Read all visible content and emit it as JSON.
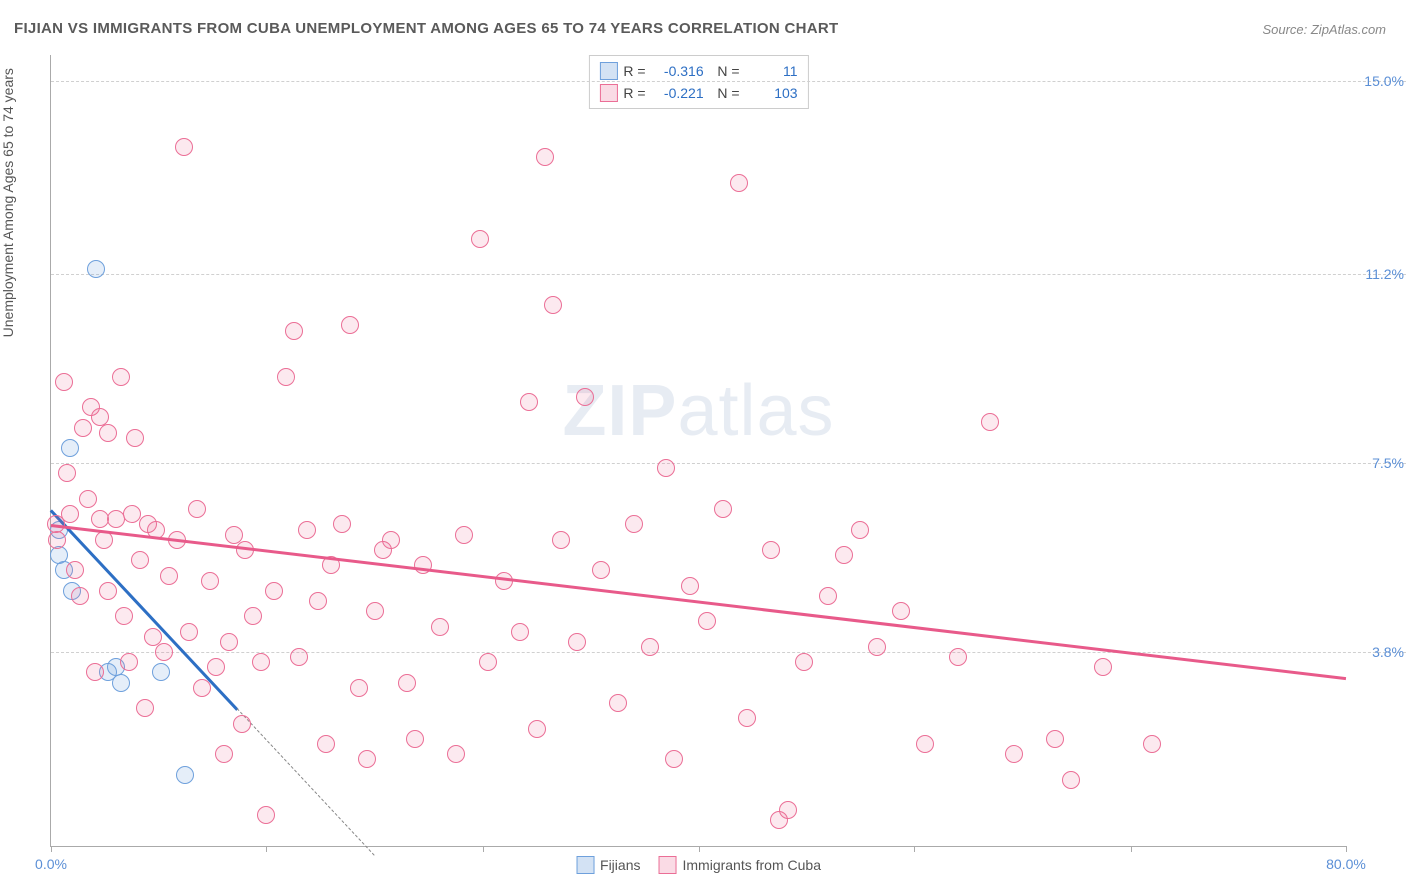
{
  "title": "FIJIAN VS IMMIGRANTS FROM CUBA UNEMPLOYMENT AMONG AGES 65 TO 74 YEARS CORRELATION CHART",
  "source_label": "Source: ZipAtlas.com",
  "ylabel": "Unemployment Among Ages 65 to 74 years",
  "watermark_bold": "ZIP",
  "watermark_light": "atlas",
  "chart": {
    "type": "scatter",
    "xlim": [
      0,
      80
    ],
    "ylim": [
      0,
      15.5
    ],
    "xtick_positions": [
      0,
      13.3,
      26.7,
      40,
      53.3,
      66.7,
      80
    ],
    "xtick_labels": {
      "0": "0.0%",
      "80": "80.0%"
    },
    "ytick_positions": [
      3.8,
      7.5,
      11.2,
      15.0
    ],
    "ytick_labels": [
      "3.8%",
      "7.5%",
      "11.2%",
      "15.0%"
    ],
    "grid_color": "#d0d0d0",
    "background_color": "#ffffff",
    "axis_color": "#aaaaaa",
    "label_color": "#5b8fd6",
    "series": [
      {
        "name": "Fijians",
        "color_fill": "rgba(110,160,220,0.18)",
        "color_stroke": "#6ea0dc",
        "R": "-0.316",
        "N": "11",
        "trend": {
          "x1": 0,
          "y1": 6.6,
          "x2": 11.5,
          "y2": 2.7,
          "color": "#2d6fc4",
          "dash_extend_x": 20
        },
        "points": [
          [
            0.5,
            6.2
          ],
          [
            0.5,
            5.7
          ],
          [
            0.8,
            5.4
          ],
          [
            1.2,
            7.8
          ],
          [
            1.3,
            5.0
          ],
          [
            2.8,
            11.3
          ],
          [
            3.5,
            3.4
          ],
          [
            4.3,
            3.2
          ],
          [
            4.0,
            3.5
          ],
          [
            6.8,
            3.4
          ],
          [
            8.3,
            1.4
          ]
        ]
      },
      {
        "name": "Immigrants from Cuba",
        "color_fill": "rgba(235,110,150,0.15)",
        "color_stroke": "#eb6e96",
        "R": "-0.221",
        "N": "103",
        "trend": {
          "x1": 0,
          "y1": 6.3,
          "x2": 80,
          "y2": 3.3,
          "color": "#e85a8a"
        },
        "points": [
          [
            0.3,
            6.3
          ],
          [
            0.4,
            6.0
          ],
          [
            0.8,
            9.1
          ],
          [
            1.0,
            7.3
          ],
          [
            1.2,
            6.5
          ],
          [
            1.5,
            5.4
          ],
          [
            1.8,
            4.9
          ],
          [
            2.0,
            8.2
          ],
          [
            2.3,
            6.8
          ],
          [
            2.5,
            8.6
          ],
          [
            2.7,
            3.4
          ],
          [
            3.0,
            6.4
          ],
          [
            3.0,
            8.4
          ],
          [
            3.3,
            6.0
          ],
          [
            3.5,
            5.0
          ],
          [
            3.5,
            8.1
          ],
          [
            4.0,
            6.4
          ],
          [
            4.3,
            9.2
          ],
          [
            4.5,
            4.5
          ],
          [
            4.8,
            3.6
          ],
          [
            5.0,
            6.5
          ],
          [
            5.2,
            8.0
          ],
          [
            5.5,
            5.6
          ],
          [
            5.8,
            2.7
          ],
          [
            6.0,
            6.3
          ],
          [
            6.3,
            4.1
          ],
          [
            6.5,
            6.2
          ],
          [
            7.0,
            3.8
          ],
          [
            7.3,
            5.3
          ],
          [
            7.8,
            6.0
          ],
          [
            8.2,
            13.7
          ],
          [
            8.5,
            4.2
          ],
          [
            9.0,
            6.6
          ],
          [
            9.3,
            3.1
          ],
          [
            9.8,
            5.2
          ],
          [
            10.2,
            3.5
          ],
          [
            10.7,
            1.8
          ],
          [
            11.0,
            4.0
          ],
          [
            11.3,
            6.1
          ],
          [
            11.8,
            2.4
          ],
          [
            12.0,
            5.8
          ],
          [
            12.5,
            4.5
          ],
          [
            13.0,
            3.6
          ],
          [
            13.3,
            0.6
          ],
          [
            13.8,
            5.0
          ],
          [
            14.5,
            9.2
          ],
          [
            15.0,
            10.1
          ],
          [
            15.3,
            3.7
          ],
          [
            15.8,
            6.2
          ],
          [
            16.5,
            4.8
          ],
          [
            17.0,
            2.0
          ],
          [
            17.3,
            5.5
          ],
          [
            18.0,
            6.3
          ],
          [
            18.5,
            10.2
          ],
          [
            19.0,
            3.1
          ],
          [
            19.5,
            1.7
          ],
          [
            20.0,
            4.6
          ],
          [
            20.5,
            5.8
          ],
          [
            21.0,
            6.0
          ],
          [
            22.0,
            3.2
          ],
          [
            22.5,
            2.1
          ],
          [
            23.0,
            5.5
          ],
          [
            24.0,
            4.3
          ],
          [
            25.0,
            1.8
          ],
          [
            25.5,
            6.1
          ],
          [
            26.5,
            11.9
          ],
          [
            27.0,
            3.6
          ],
          [
            28.0,
            5.2
          ],
          [
            29.0,
            4.2
          ],
          [
            29.5,
            8.7
          ],
          [
            30.0,
            2.3
          ],
          [
            30.5,
            13.5
          ],
          [
            31.0,
            10.6
          ],
          [
            31.5,
            6.0
          ],
          [
            32.5,
            4.0
          ],
          [
            33.0,
            8.8
          ],
          [
            34.0,
            5.4
          ],
          [
            35.0,
            2.8
          ],
          [
            36.0,
            6.3
          ],
          [
            37.0,
            3.9
          ],
          [
            38.0,
            7.4
          ],
          [
            38.5,
            1.7
          ],
          [
            39.5,
            5.1
          ],
          [
            40.5,
            4.4
          ],
          [
            41.5,
            6.6
          ],
          [
            42.5,
            13.0
          ],
          [
            43.0,
            2.5
          ],
          [
            44.5,
            5.8
          ],
          [
            45.0,
            0.5
          ],
          [
            45.5,
            0.7
          ],
          [
            46.5,
            3.6
          ],
          [
            48.0,
            4.9
          ],
          [
            49.0,
            5.7
          ],
          [
            50.0,
            6.2
          ],
          [
            51.0,
            3.9
          ],
          [
            52.5,
            4.6
          ],
          [
            54.0,
            2.0
          ],
          [
            56.0,
            3.7
          ],
          [
            58.0,
            8.3
          ],
          [
            59.5,
            1.8
          ],
          [
            62.0,
            2.1
          ],
          [
            63.0,
            1.3
          ],
          [
            65.0,
            3.5
          ],
          [
            68.0,
            2.0
          ]
        ]
      }
    ]
  },
  "legend_bottom": [
    {
      "label": "Fijians",
      "swatch": "blue"
    },
    {
      "label": "Immigrants from Cuba",
      "swatch": "pink"
    }
  ]
}
